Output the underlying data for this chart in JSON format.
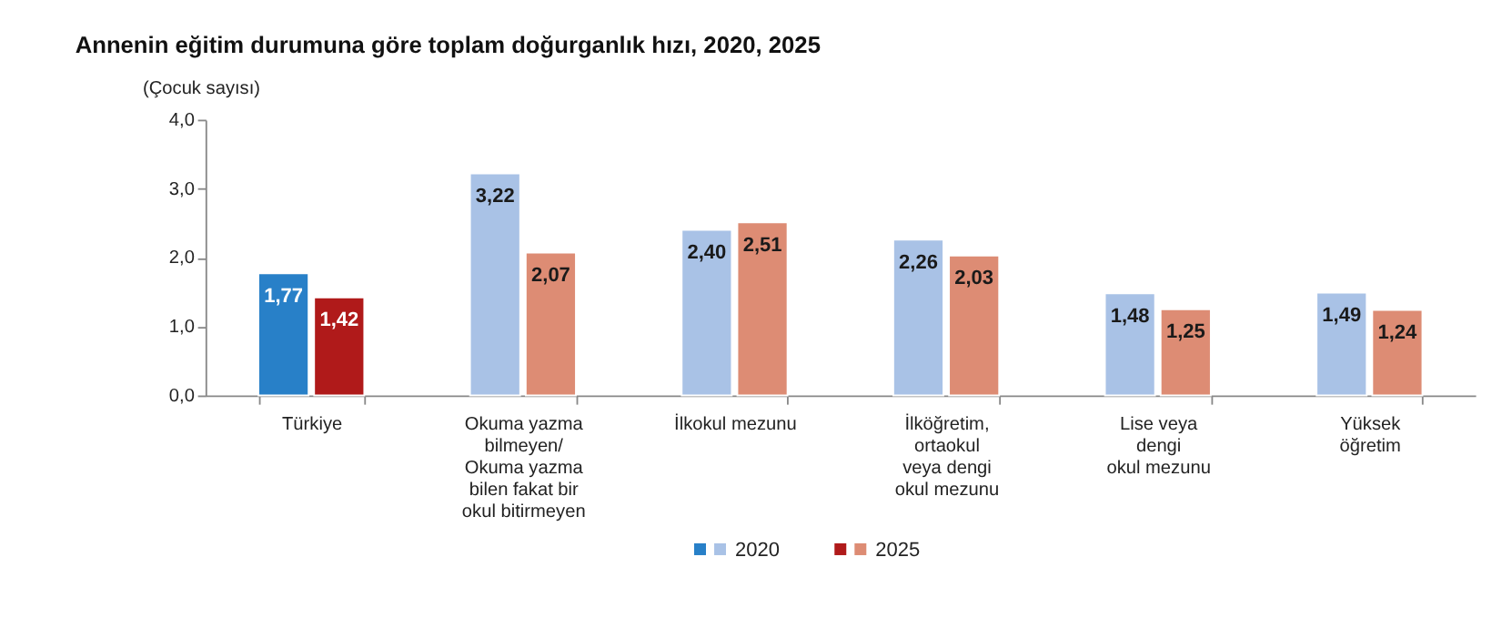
{
  "chart_data": {
    "type": "bar",
    "title": "Annenin eğitim durumuna göre toplam doğurganlık hızı, 2020, 2025",
    "ylabel": "(Çocuk sayısı)",
    "categories": [
      "Türkiye",
      "Okuma yazma\nbilmeyen/\nOkuma yazma\nbilen fakat bir\nokul bitirmeyen",
      "İlkokul mezunu",
      "İlköğretim,\nortaokul\nveya dengi\nokul mezunu",
      "Lise veya\ndengi\nokul mezunu",
      "Yüksek\nöğretim"
    ],
    "series": [
      {
        "name": "2020",
        "colors": [
          "#2880c8",
          "#a9c2e6",
          "#a9c2e6",
          "#a9c2e6",
          "#a9c2e6",
          "#a9c2e6"
        ],
        "values": [
          1.77,
          3.22,
          2.4,
          2.26,
          1.48,
          1.49
        ],
        "value_labels": [
          "1,77",
          "3,22",
          "2,40",
          "2,26",
          "1,48",
          "1,49"
        ]
      },
      {
        "name": "2025",
        "colors": [
          "#b01a1a",
          "#dd8c74",
          "#dd8c74",
          "#dd8c74",
          "#dd8c74",
          "#dd8c74"
        ],
        "values": [
          1.42,
          2.07,
          2.51,
          2.03,
          1.25,
          1.24
        ],
        "value_labels": [
          "1,42",
          "2,07",
          "2,51",
          "2,03",
          "1,25",
          "1,24"
        ]
      }
    ],
    "ylim": [
      0,
      4
    ],
    "yticks": [
      {
        "value": 0,
        "label": "0,0"
      },
      {
        "value": 1,
        "label": "1,0"
      },
      {
        "value": 2,
        "label": "2,0"
      },
      {
        "value": 3,
        "label": "3,0"
      },
      {
        "value": 4,
        "label": "4,0"
      }
    ],
    "grid": false,
    "legend": "bottom"
  }
}
